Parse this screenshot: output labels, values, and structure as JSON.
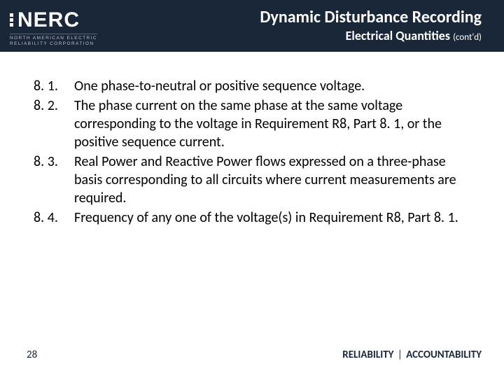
{
  "header": {
    "logo_text": "NERC",
    "logo_sub_line1": "NORTH AMERICAN ELECTRIC",
    "logo_sub_line2": "RELIABILITY CORPORATION",
    "title": "Dynamic Disturbance Recording",
    "subtitle": "Electrical Quantities",
    "subtitle_suffix": "(cont'd)"
  },
  "colors": {
    "header_bg": "#1a2738",
    "text": "#000000",
    "footer_text": "#1a2738"
  },
  "list": [
    {
      "num": "8. 1.",
      "text": "One phase-to-neutral or positive sequence voltage."
    },
    {
      "num": "8. 2.",
      "text": "The phase current on the same phase at the same voltage corresponding to the voltage in Requirement R8, Part 8. 1, or the positive sequence current."
    },
    {
      "num": "8. 3.",
      "text": "Real Power and Reactive Power flows expressed on a three-phase basis corresponding to all circuits where current measurements are required."
    },
    {
      "num": "8. 4.",
      "text": "Frequency of any one of the voltage(s) in Requirement R8, Part 8. 1."
    }
  ],
  "footer": {
    "page": "28",
    "tagline_left": "RELIABILITY",
    "tagline_sep": "|",
    "tagline_right": "ACCOUNTABILITY"
  }
}
